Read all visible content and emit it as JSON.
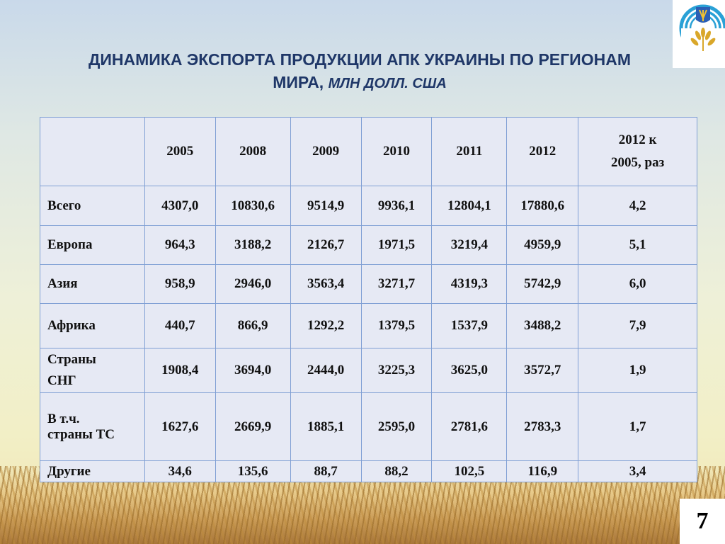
{
  "title": {
    "line1": "ДИНАМИКА  ЭКСПОРТА ПРОДУКЦИИ АПК УКРАИНЫ ПО РЕГИОНАМ",
    "line2_main": "МИРА,",
    "line2_units": "МЛН ДОЛЛ. США"
  },
  "table": {
    "headers": [
      "",
      "2005",
      "2008",
      "2009",
      "2010",
      "2011",
      "2012"
    ],
    "ratio_header_line1": "2012 к",
    "ratio_header_line2": "2005, раз",
    "rows": [
      {
        "label1": "Всего",
        "label2": "",
        "values": [
          "4307,0",
          "10830,6",
          "9514,9",
          "9936,1",
          "12804,1",
          "17880,6",
          "4,2"
        ]
      },
      {
        "label1": "Европа",
        "label2": "",
        "values": [
          "964,3",
          "3188,2",
          "2126,7",
          "1971,5",
          "3219,4",
          "4959,9",
          "5,1"
        ]
      },
      {
        "label1": "Азия",
        "label2": "",
        "values": [
          "958,9",
          "2946,0",
          "3563,4",
          "3271,7",
          "4319,3",
          "5742,9",
          "6,0"
        ]
      },
      {
        "label1": "Африка",
        "label2": "",
        "values": [
          "440,7",
          "866,9",
          "1292,2",
          "1379,5",
          "1537,9",
          "3488,2",
          "7,9"
        ]
      },
      {
        "label1": "Страны",
        "label2": "СНГ",
        "values": [
          "1908,4",
          "3694,0",
          "2444,0",
          "3225,3",
          "3625,0",
          "3572,7",
          "1,9"
        ]
      },
      {
        "label1": "В т.ч.",
        "label2": "страны ТС",
        "values": [
          "1627,6",
          "2669,9",
          "1885,1",
          "2595,0",
          "2781,6",
          "2783,3",
          "1,7"
        ]
      },
      {
        "label1": "Другие",
        "label2": "",
        "values": [
          "34,6",
          "135,6",
          "88,7",
          "88,2",
          "102,5",
          "116,9",
          "3,4"
        ]
      }
    ]
  },
  "page_number": "7",
  "colors": {
    "title": "#1f3768",
    "table_bg": "#e6e9f4",
    "table_border": "#7f9fd4",
    "logo_blue": "#2aa1d6",
    "logo_gold": "#d9a72a"
  }
}
